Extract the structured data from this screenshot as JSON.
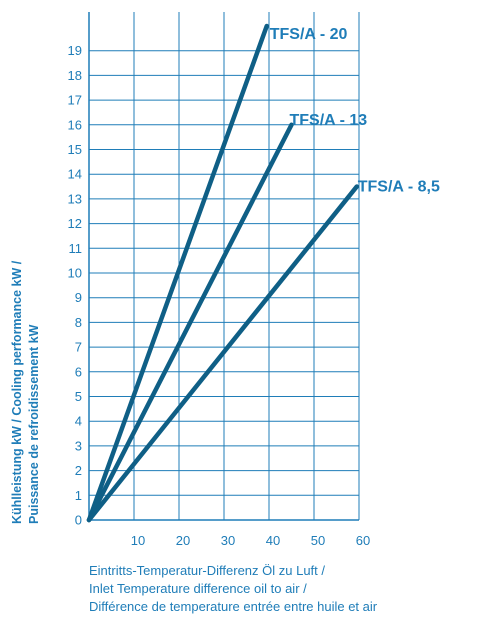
{
  "chart_data": {
    "type": "line",
    "title": "",
    "xlabel": [
      "Eintritts-Temperatur-Differenz Öl zu Luft /",
      "Inlet Temperature difference oil to air /",
      "Différence de temperature entrée entre huile et air"
    ],
    "ylabel": [
      "Kühlleistung kW / Cooling performance kW /",
      "Puissance de refroidissement kW"
    ],
    "xlim": [
      0,
      60
    ],
    "ylim": [
      0,
      20
    ],
    "x_ticks": [
      10,
      20,
      30,
      40,
      50,
      60
    ],
    "y_ticks": [
      0,
      1,
      2,
      3,
      4,
      5,
      6,
      7,
      8,
      9,
      10,
      11,
      12,
      13,
      14,
      15,
      16,
      17,
      18,
      19
    ],
    "grid": true,
    "line_color": "#0f5f86",
    "grid_color": "#1f7db8",
    "series": [
      {
        "name": "TFS/A - 20",
        "x": [
          0,
          39.5
        ],
        "y": [
          0,
          20
        ]
      },
      {
        "name": "TFS/A - 13",
        "x": [
          0,
          45
        ],
        "y": [
          0,
          16
        ]
      },
      {
        "name": "TFS/A - 8,5",
        "x": [
          0,
          59.5
        ],
        "y": [
          0,
          13.5
        ]
      }
    ]
  }
}
